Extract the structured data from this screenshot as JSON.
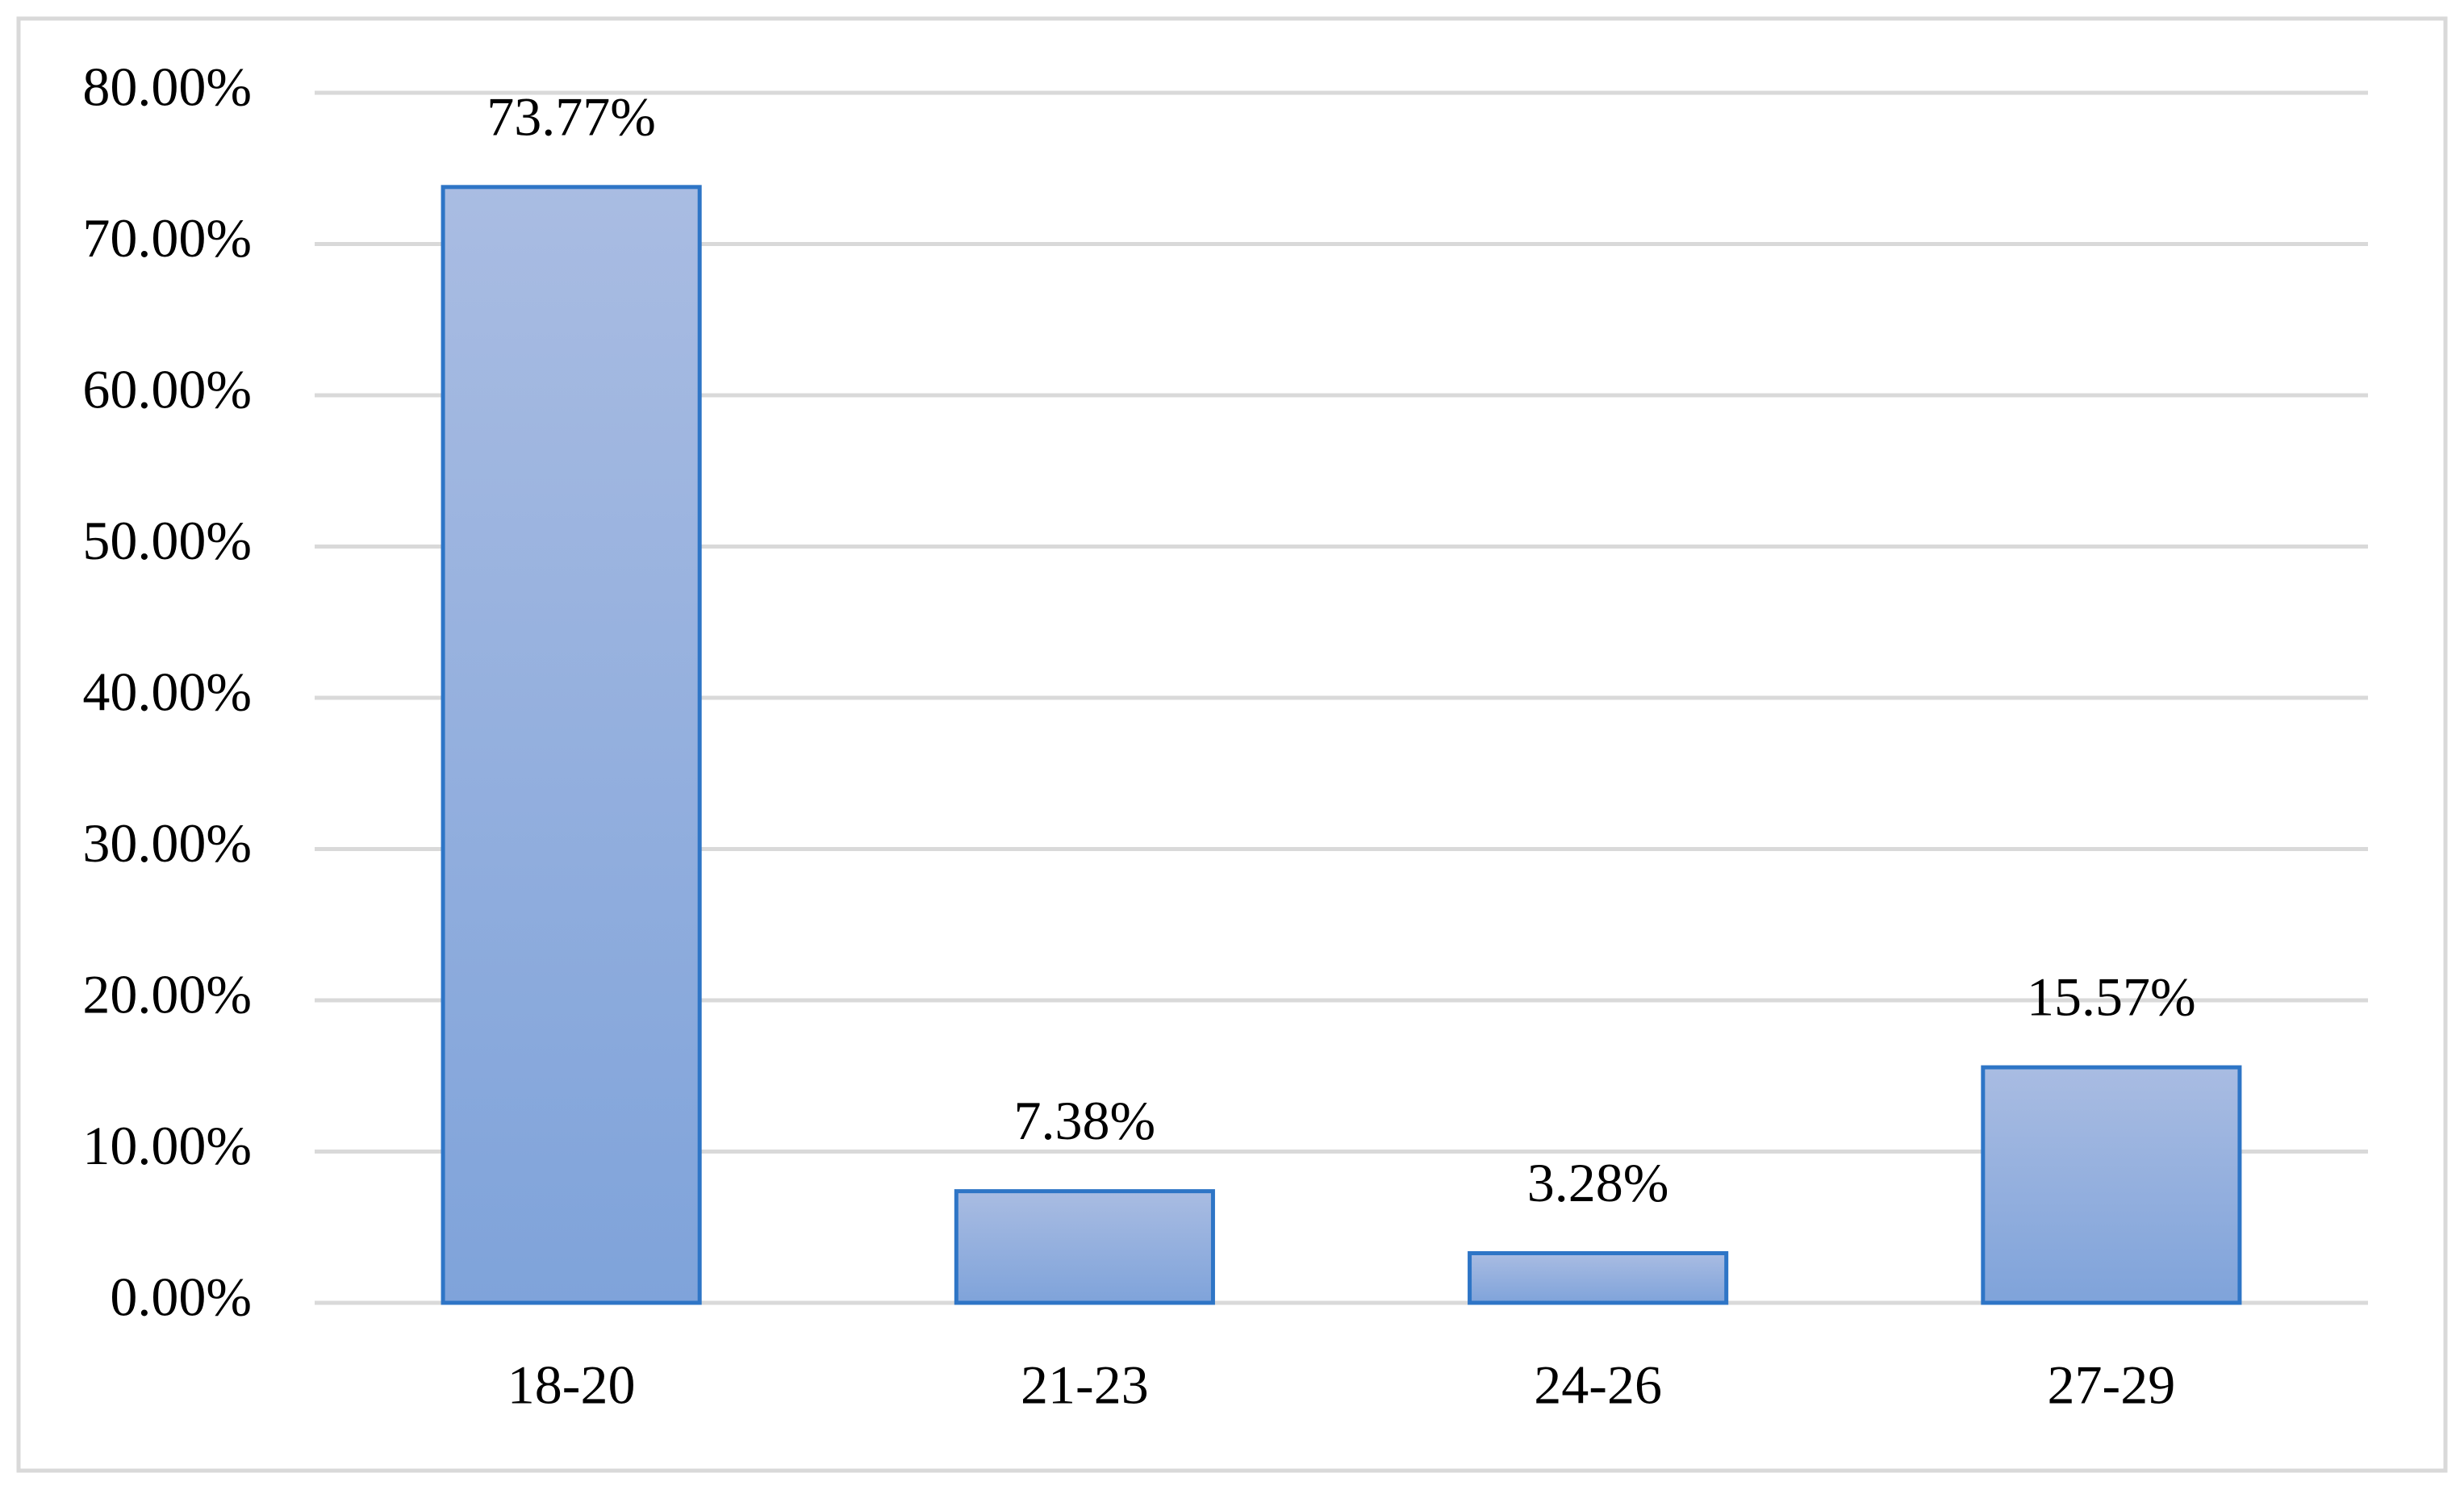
{
  "chart_data": {
    "type": "bar",
    "categories": [
      "18-20",
      "21-23",
      "24-26",
      "27-29"
    ],
    "values": [
      73.77,
      7.38,
      3.28,
      15.57
    ],
    "value_labels": [
      "73.77%",
      "7.38%",
      "3.28%",
      "15.57%"
    ],
    "color": "#2e75c6",
    "ylim": [
      0,
      80
    ],
    "yticks": [
      {
        "value": 0,
        "label": "0.00%"
      },
      {
        "value": 10,
        "label": "10.00%"
      },
      {
        "value": 20,
        "label": "20.00%"
      },
      {
        "value": 30,
        "label": "30.00%"
      },
      {
        "value": 40,
        "label": "40.00%"
      },
      {
        "value": 50,
        "label": "50.00%"
      },
      {
        "value": 60,
        "label": "60.00%"
      },
      {
        "value": 70,
        "label": "70.00%"
      },
      {
        "value": 80,
        "label": "80.00%"
      }
    ],
    "grid": true
  }
}
